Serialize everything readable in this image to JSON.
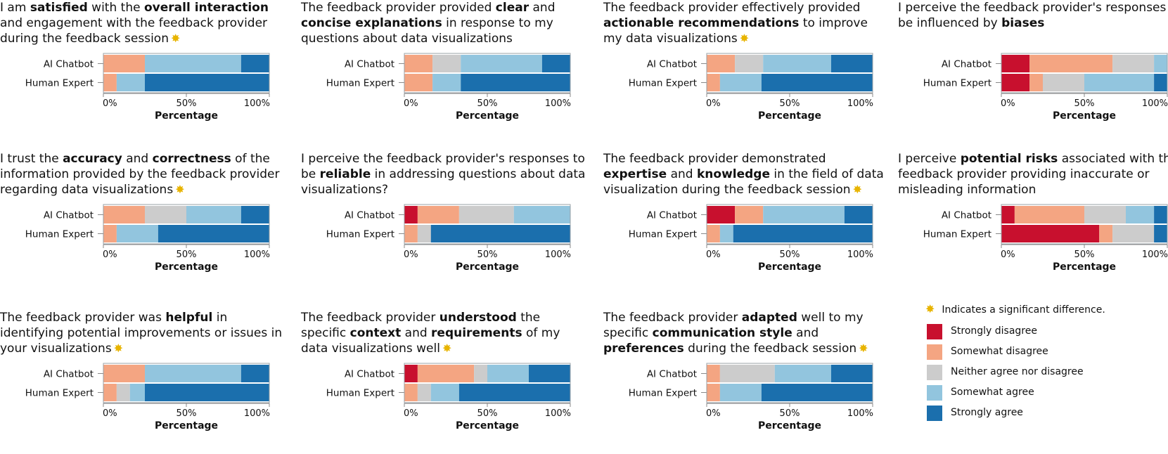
{
  "colors": {
    "Strongly disagree": "#c8102e",
    "Somewhat disagree": "#f4a582",
    "Neither agree nor disagree": "#cccccc",
    "Somewhat agree": "#92c5de",
    "Strongly agree": "#1b6fad"
  },
  "significance_icon": "star-sparkle-icon",
  "legend": {
    "note": "Indicates a significant difference.",
    "items": [
      "Strongly disagree",
      "Somewhat disagree",
      "Neither agree nor disagree",
      "Somewhat agree",
      "Strongly agree"
    ]
  },
  "chart_data": [
    {
      "type": "bar",
      "orientation": "horizontal-stacked",
      "title_parts": [
        [
          "I am ",
          false
        ],
        [
          "satisfied",
          true
        ],
        [
          " with the ",
          false
        ],
        [
          "overall interaction",
          true
        ],
        [
          " and engagement with the feedback provider during the feedback session",
          false
        ]
      ],
      "significant": true,
      "categories": [
        "AI Chatbot",
        "Human Expert"
      ],
      "series": [
        {
          "name": "Strongly disagree",
          "values": [
            0,
            0
          ]
        },
        {
          "name": "Somewhat disagree",
          "values": [
            25,
            8
          ]
        },
        {
          "name": "Neither agree nor disagree",
          "values": [
            0,
            0
          ]
        },
        {
          "name": "Somewhat agree",
          "values": [
            58,
            17
          ]
        },
        {
          "name": "Strongly agree",
          "values": [
            17,
            75
          ]
        }
      ],
      "xlabel": "Percentage",
      "ticks": [
        "0%",
        "50%",
        "100%"
      ],
      "xlim": [
        0,
        100
      ]
    },
    {
      "type": "bar",
      "orientation": "horizontal-stacked",
      "title_parts": [
        [
          "The feedback provider provided ",
          false
        ],
        [
          "clear",
          true
        ],
        [
          " and ",
          false
        ],
        [
          "concise explanations",
          true
        ],
        [
          " in response to my questions about data visualizations",
          false
        ]
      ],
      "significant": false,
      "categories": [
        "AI Chatbot",
        "Human Expert"
      ],
      "series": [
        {
          "name": "Strongly disagree",
          "values": [
            0,
            0
          ]
        },
        {
          "name": "Somewhat disagree",
          "values": [
            17,
            17
          ]
        },
        {
          "name": "Neither agree nor disagree",
          "values": [
            17,
            0
          ]
        },
        {
          "name": "Somewhat agree",
          "values": [
            49,
            17
          ]
        },
        {
          "name": "Strongly agree",
          "values": [
            17,
            66
          ]
        }
      ],
      "xlabel": "Percentage",
      "ticks": [
        "0%",
        "50%",
        "100%"
      ],
      "xlim": [
        0,
        100
      ]
    },
    {
      "type": "bar",
      "orientation": "horizontal-stacked",
      "title_parts": [
        [
          "The feedback provider effectively provided ",
          false
        ],
        [
          "actionable recommendations",
          true
        ],
        [
          " to improve my data visualizations",
          false
        ]
      ],
      "significant": true,
      "categories": [
        "AI Chatbot",
        "Human Expert"
      ],
      "series": [
        {
          "name": "Strongly disagree",
          "values": [
            0,
            0
          ]
        },
        {
          "name": "Somewhat disagree",
          "values": [
            17,
            8
          ]
        },
        {
          "name": "Neither agree nor disagree",
          "values": [
            17,
            0
          ]
        },
        {
          "name": "Somewhat agree",
          "values": [
            41,
            25
          ]
        },
        {
          "name": "Strongly agree",
          "values": [
            25,
            67
          ]
        }
      ],
      "xlabel": "Percentage",
      "ticks": [
        "0%",
        "50%",
        "100%"
      ],
      "xlim": [
        0,
        100
      ]
    },
    {
      "type": "bar",
      "orientation": "horizontal-stacked",
      "title_parts": [
        [
          "I perceive the feedback provider's responses to be influenced by ",
          false
        ],
        [
          "biases",
          true
        ]
      ],
      "significant": false,
      "categories": [
        "AI Chatbot",
        "Human Expert"
      ],
      "series": [
        {
          "name": "Strongly disagree",
          "values": [
            17,
            17
          ]
        },
        {
          "name": "Somewhat disagree",
          "values": [
            50,
            8
          ]
        },
        {
          "name": "Neither agree nor disagree",
          "values": [
            25,
            25
          ]
        },
        {
          "name": "Somewhat agree",
          "values": [
            8,
            42
          ]
        },
        {
          "name": "Strongly agree",
          "values": [
            0,
            8
          ]
        }
      ],
      "xlabel": "Percentage",
      "ticks": [
        "0%",
        "50%",
        "100%"
      ],
      "xlim": [
        0,
        100
      ]
    },
    {
      "type": "bar",
      "orientation": "horizontal-stacked",
      "title_parts": [
        [
          "I trust the ",
          false
        ],
        [
          "accuracy",
          true
        ],
        [
          " and ",
          false
        ],
        [
          "correctness",
          true
        ],
        [
          " of the information provided by the feedback provider regarding data visualizations",
          false
        ]
      ],
      "significant": true,
      "categories": [
        "AI Chatbot",
        "Human Expert"
      ],
      "series": [
        {
          "name": "Strongly disagree",
          "values": [
            0,
            0
          ]
        },
        {
          "name": "Somewhat disagree",
          "values": [
            25,
            8
          ]
        },
        {
          "name": "Neither agree nor disagree",
          "values": [
            25,
            0
          ]
        },
        {
          "name": "Somewhat agree",
          "values": [
            33,
            25
          ]
        },
        {
          "name": "Strongly agree",
          "values": [
            17,
            67
          ]
        }
      ],
      "xlabel": "Percentage",
      "ticks": [
        "0%",
        "50%",
        "100%"
      ],
      "xlim": [
        0,
        100
      ]
    },
    {
      "type": "bar",
      "orientation": "horizontal-stacked",
      "title_parts": [
        [
          "I perceive the feedback provider's responses to be ",
          false
        ],
        [
          "reliable",
          true
        ],
        [
          " in addressing questions about data visualizations?",
          false
        ]
      ],
      "significant": false,
      "categories": [
        "AI Chatbot",
        "Human Expert"
      ],
      "series": [
        {
          "name": "Strongly disagree",
          "values": [
            8,
            0
          ]
        },
        {
          "name": "Somewhat disagree",
          "values": [
            25,
            8
          ]
        },
        {
          "name": "Neither agree nor disagree",
          "values": [
            33,
            8
          ]
        },
        {
          "name": "Somewhat agree",
          "values": [
            34,
            0
          ]
        },
        {
          "name": "Strongly agree",
          "values": [
            0,
            84
          ]
        }
      ],
      "xlabel": "Percentage",
      "ticks": [
        "0%",
        "50%",
        "100%"
      ],
      "xlim": [
        0,
        100
      ]
    },
    {
      "type": "bar",
      "orientation": "horizontal-stacked",
      "title_parts": [
        [
          "The feedback provider demonstrated ",
          false
        ],
        [
          "expertise",
          true
        ],
        [
          " and ",
          false
        ],
        [
          "knowledge",
          true
        ],
        [
          " in the field of data visualization during the feedback session",
          false
        ]
      ],
      "significant": true,
      "categories": [
        "AI Chatbot",
        "Human Expert"
      ],
      "series": [
        {
          "name": "Strongly disagree",
          "values": [
            17,
            0
          ]
        },
        {
          "name": "Somewhat disagree",
          "values": [
            17,
            8
          ]
        },
        {
          "name": "Neither agree nor disagree",
          "values": [
            0,
            0
          ]
        },
        {
          "name": "Somewhat agree",
          "values": [
            49,
            8
          ]
        },
        {
          "name": "Strongly agree",
          "values": [
            17,
            84
          ]
        }
      ],
      "xlabel": "Percentage",
      "ticks": [
        "0%",
        "50%",
        "100%"
      ],
      "xlim": [
        0,
        100
      ]
    },
    {
      "type": "bar",
      "orientation": "horizontal-stacked",
      "title_parts": [
        [
          "I perceive ",
          false
        ],
        [
          "potential risks",
          true
        ],
        [
          " associated with the feedback provider providing inaccurate or misleading information",
          false
        ]
      ],
      "significant": false,
      "categories": [
        "AI Chatbot",
        "Human Expert"
      ],
      "series": [
        {
          "name": "Strongly disagree",
          "values": [
            8,
            59
          ]
        },
        {
          "name": "Somewhat disagree",
          "values": [
            42,
            8
          ]
        },
        {
          "name": "Neither agree nor disagree",
          "values": [
            25,
            25
          ]
        },
        {
          "name": "Somewhat agree",
          "values": [
            17,
            0
          ]
        },
        {
          "name": "Strongly agree",
          "values": [
            8,
            8
          ]
        }
      ],
      "xlabel": "Percentage",
      "ticks": [
        "0%",
        "50%",
        "100%"
      ],
      "xlim": [
        0,
        100
      ]
    },
    {
      "type": "bar",
      "orientation": "horizontal-stacked",
      "title_parts": [
        [
          "The feedback provider was ",
          false
        ],
        [
          "helpful",
          true
        ],
        [
          " in identifying potential improvements or issues in your visualizations",
          false
        ]
      ],
      "significant": true,
      "categories": [
        "AI Chatbot",
        "Human Expert"
      ],
      "series": [
        {
          "name": "Strongly disagree",
          "values": [
            0,
            0
          ]
        },
        {
          "name": "Somewhat disagree",
          "values": [
            25,
            8
          ]
        },
        {
          "name": "Neither agree nor disagree",
          "values": [
            0,
            8
          ]
        },
        {
          "name": "Somewhat agree",
          "values": [
            58,
            9
          ]
        },
        {
          "name": "Strongly agree",
          "values": [
            17,
            75
          ]
        }
      ],
      "xlabel": "Percentage",
      "ticks": [
        "0%",
        "50%",
        "100%"
      ],
      "xlim": [
        0,
        100
      ]
    },
    {
      "type": "bar",
      "orientation": "horizontal-stacked",
      "title_parts": [
        [
          "The feedback provider ",
          false
        ],
        [
          "understood",
          true
        ],
        [
          " the specific ",
          false
        ],
        [
          "context",
          true
        ],
        [
          " and ",
          false
        ],
        [
          "requirements",
          true
        ],
        [
          " of my data visualizations well",
          false
        ]
      ],
      "significant": true,
      "categories": [
        "AI Chatbot",
        "Human Expert"
      ],
      "series": [
        {
          "name": "Strongly disagree",
          "values": [
            8,
            0
          ]
        },
        {
          "name": "Somewhat disagree",
          "values": [
            34,
            8
          ]
        },
        {
          "name": "Neither agree nor disagree",
          "values": [
            8,
            8
          ]
        },
        {
          "name": "Somewhat agree",
          "values": [
            25,
            17
          ]
        },
        {
          "name": "Strongly agree",
          "values": [
            25,
            67
          ]
        }
      ],
      "xlabel": "Percentage",
      "ticks": [
        "0%",
        "50%",
        "100%"
      ],
      "xlim": [
        0,
        100
      ]
    },
    {
      "type": "bar",
      "orientation": "horizontal-stacked",
      "title_parts": [
        [
          "The feedback provider ",
          false
        ],
        [
          "adapted",
          true
        ],
        [
          " well to my specific ",
          false
        ],
        [
          "communication style",
          true
        ],
        [
          " and ",
          false
        ],
        [
          "preferences",
          true
        ],
        [
          " during the feedback session",
          false
        ]
      ],
      "significant": true,
      "categories": [
        "AI Chatbot",
        "Human Expert"
      ],
      "series": [
        {
          "name": "Strongly disagree",
          "values": [
            0,
            0
          ]
        },
        {
          "name": "Somewhat disagree",
          "values": [
            8,
            8
          ]
        },
        {
          "name": "Neither agree nor disagree",
          "values": [
            33,
            0
          ]
        },
        {
          "name": "Somewhat agree",
          "values": [
            34,
            25
          ]
        },
        {
          "name": "Strongly agree",
          "values": [
            25,
            67
          ]
        }
      ],
      "xlabel": "Percentage",
      "ticks": [
        "0%",
        "50%",
        "100%"
      ],
      "xlim": [
        0,
        100
      ]
    }
  ]
}
